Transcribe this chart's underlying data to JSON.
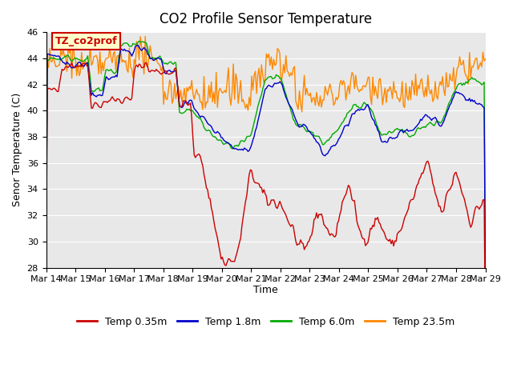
{
  "title": "CO2 Profile Sensor Temperature",
  "ylabel": "Senor Temperature (C)",
  "xlabel": "Time",
  "ylim": [
    28,
    46
  ],
  "yticks": [
    28,
    30,
    32,
    34,
    36,
    38,
    40,
    42,
    44,
    46
  ],
  "annotation": "TZ_co2prof",
  "legend_labels": [
    "Temp 0.35m",
    "Temp 1.8m",
    "Temp 6.0m",
    "Temp 23.5m"
  ],
  "line_colors": [
    "#cc0000",
    "#0000cc",
    "#00aa00",
    "#ff8800"
  ],
  "background_color": "#ffffff",
  "plot_bg_color": "#e8e8e8",
  "grid_color": "#ffffff",
  "n_points": 360,
  "x_start": 14,
  "x_end": 29,
  "xtick_days": [
    14,
    15,
    16,
    17,
    18,
    19,
    20,
    21,
    22,
    23,
    24,
    25,
    26,
    27,
    28,
    29
  ],
  "xtick_labels": [
    "Mar 14",
    "Mar 15",
    "Mar 16",
    "Mar 17",
    "Mar 18",
    "Mar 19",
    "Mar 20",
    "Mar 21",
    "Mar 22",
    "Mar 23",
    "Mar 24",
    "Mar 25",
    "Mar 26",
    "Mar 27",
    "Mar 28",
    "Mar 29"
  ]
}
